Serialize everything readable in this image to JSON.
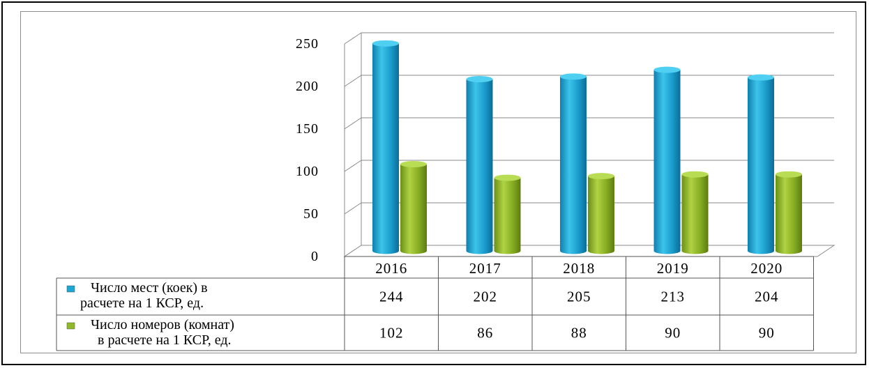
{
  "chart_data": {
    "type": "bar",
    "categories": [
      "2016",
      "2017",
      "2018",
      "2019",
      "2020"
    ],
    "series": [
      {
        "name": "Число мест (коек) в расчете на 1 КСР, ед.",
        "legend_lines": [
          "Число мест (коек) в",
          "расчете на 1 КСР, ед."
        ],
        "values": [
          244,
          202,
          205,
          213,
          204
        ],
        "color": "#1ea7d2"
      },
      {
        "name": "Число номеров (комнат) в расчете на 1 КСР, ед.",
        "legend_lines": [
          "Число номеров (комнат)",
          "в расчете на 1 КСР, ед."
        ],
        "values": [
          102,
          86,
          88,
          90,
          90
        ],
        "color": "#8fb82a"
      }
    ],
    "yticks": [
      "0",
      "50",
      "100",
      "150",
      "200",
      "250"
    ],
    "ylim": [
      0,
      250
    ],
    "grid": true,
    "data_table": true
  }
}
